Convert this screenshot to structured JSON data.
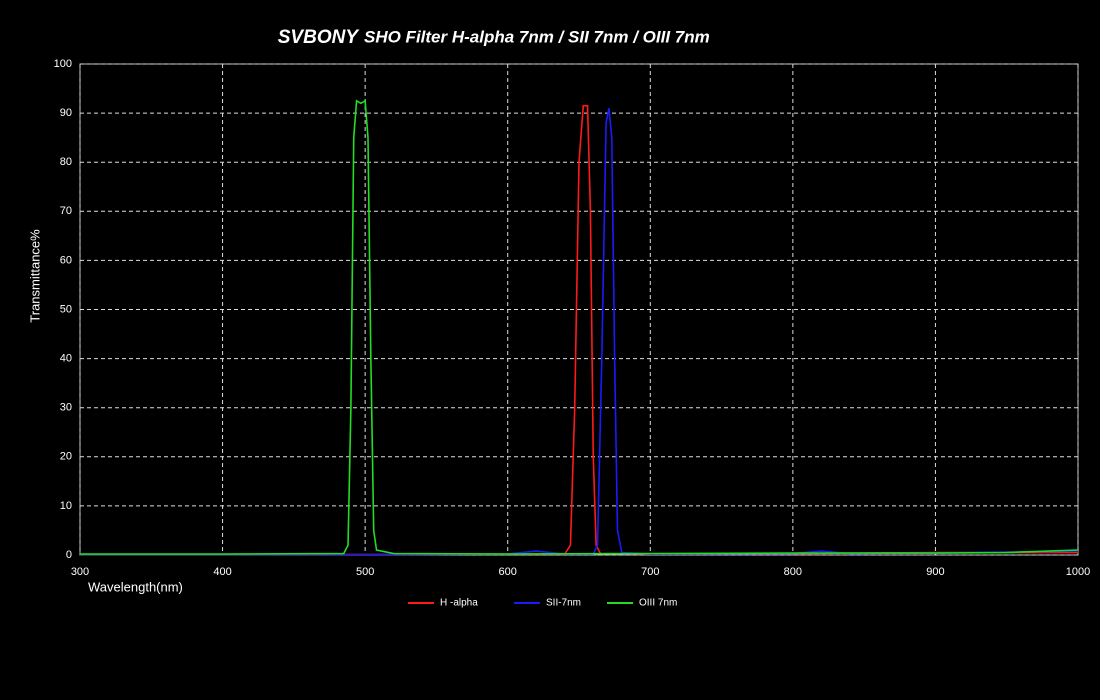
{
  "chart_data": {
    "type": "line",
    "brand": "SVBONY",
    "title": "SHO Filter H-alpha 7nm / SII 7nm / OIII 7nm",
    "x_label": "Wavelength(nm)",
    "y_label": "Transmittance%",
    "xlim": [
      300,
      1000
    ],
    "xticks": [
      300,
      400,
      500,
      600,
      700,
      800,
      900,
      1000
    ],
    "ylim": [
      0,
      100
    ],
    "yticks": [
      0,
      10,
      20,
      30,
      40,
      50,
      60,
      70,
      80,
      90,
      100
    ],
    "grid": true,
    "legend": "bottom",
    "series": [
      {
        "name": "H -alpha",
        "color": "#ff1a1a",
        "x": [
          300,
          400,
          500,
          600,
          640,
          644,
          647,
          650,
          653,
          656,
          658,
          660,
          662,
          665,
          700,
          800,
          850,
          900,
          950,
          1000
        ],
        "values": [
          0.1,
          0.1,
          0.1,
          0.2,
          0.2,
          2,
          30,
          80,
          91.5,
          91.5,
          70,
          20,
          2,
          0.3,
          0.2,
          0.3,
          0.4,
          0.5,
          0.5,
          0.5
        ]
      },
      {
        "name": "SII-7nm",
        "color": "#1a1aff",
        "x": [
          300,
          400,
          500,
          600,
          620,
          640,
          660,
          663,
          666,
          669,
          671,
          673,
          675,
          677,
          680,
          700,
          800,
          820,
          840,
          900,
          950,
          1000
        ],
        "values": [
          0.1,
          0.1,
          0.1,
          0.2,
          0.8,
          0.2,
          0.2,
          2,
          40,
          88,
          91,
          85,
          40,
          5,
          0.5,
          0.2,
          0.3,
          0.8,
          0.3,
          0.4,
          0.6,
          0.8
        ]
      },
      {
        "name": "OIII 7nm",
        "color": "#22dd22",
        "x": [
          300,
          400,
          485,
          488,
          490,
          492,
          494,
          497,
          500,
          502,
          504,
          506,
          508,
          520,
          600,
          700,
          800,
          900,
          950,
          1000
        ],
        "values": [
          0.2,
          0.2,
          0.3,
          2,
          30,
          85,
          92.5,
          92,
          92.5,
          85,
          40,
          5,
          1,
          0.3,
          0.2,
          0.3,
          0.4,
          0.4,
          0.5,
          1
        ]
      }
    ]
  }
}
